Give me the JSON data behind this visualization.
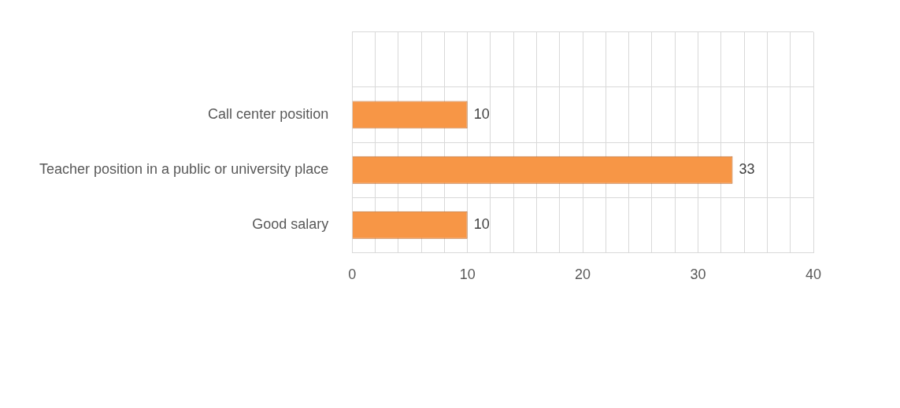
{
  "chart_data": {
    "type": "bar",
    "orientation": "horizontal",
    "categories": [
      null,
      "Call center position",
      "Teacher position in a public or university place",
      "Good salary"
    ],
    "values": [
      null,
      10,
      33,
      10
    ],
    "color": "#f79646",
    "data_labels": true,
    "grid": true,
    "xlim": [
      0,
      40
    ],
    "xticks": [
      0,
      {
        "value": 2,
        "label": null
      },
      {
        "value": 4,
        "label": null
      },
      {
        "value": 6,
        "label": null
      },
      {
        "value": 8,
        "label": null
      },
      10,
      {
        "value": 12,
        "label": null
      },
      {
        "value": 14,
        "label": null
      },
      {
        "value": 16,
        "label": null
      },
      {
        "value": 18,
        "label": null
      },
      20,
      {
        "value": 22,
        "label": null
      },
      {
        "value": 24,
        "label": null
      },
      {
        "value": 26,
        "label": null
      },
      {
        "value": 28,
        "label": null
      },
      30,
      {
        "value": 32,
        "label": null
      },
      {
        "value": 34,
        "label": null
      },
      {
        "value": 36,
        "label": null
      },
      {
        "value": 38,
        "label": null
      },
      40
    ]
  }
}
